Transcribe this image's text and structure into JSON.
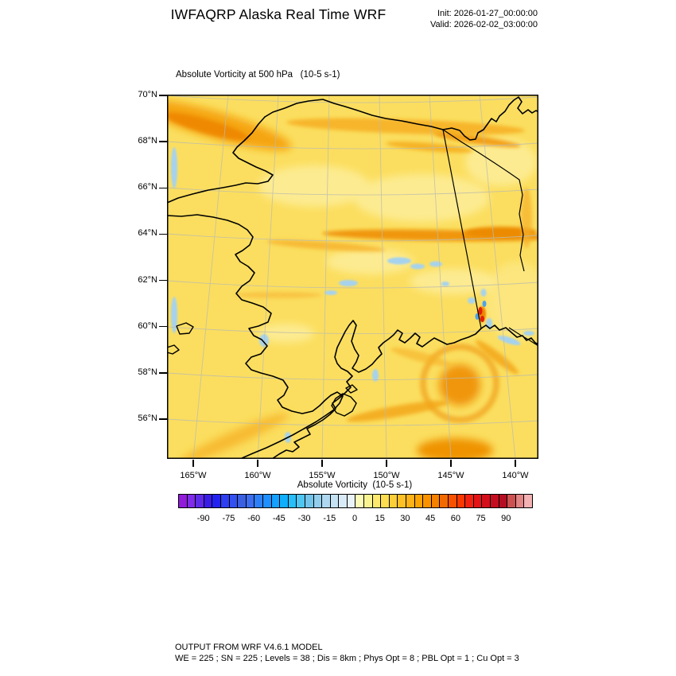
{
  "header": {
    "title": "IWFAQRP Alaska Real Time WRF",
    "init": "Init: 2026-01-27_00:00:00",
    "valid": "Valid: 2026-02-02_03:00:00"
  },
  "map": {
    "subtitle": "Absolute Vorticity at 500 hPa   (10-5 s-1)",
    "lat_labels": [
      "70°N",
      "68°N",
      "66°N",
      "64°N",
      "62°N",
      "60°N",
      "58°N",
      "56°N"
    ],
    "lon_labels": [
      "165°W",
      "160°W",
      "155°W",
      "150°W",
      "145°W",
      "140°W"
    ]
  },
  "colorbar": {
    "label": "Absolute Vorticity  (10-5 s-1)",
    "min": -105,
    "max": 105,
    "step": 5,
    "tick_values": [
      -90,
      -75,
      -60,
      -45,
      -30,
      -15,
      0,
      15,
      30,
      45,
      60,
      75,
      90
    ],
    "colors": [
      "#911cd9",
      "#7f2be8",
      "#5e2be8",
      "#3a1ee8",
      "#2323f0",
      "#2e3ef0",
      "#3350f0",
      "#3a5fe0",
      "#3e6ef0",
      "#2e80f8",
      "#1e90ff",
      "#14a0ff",
      "#0fafff",
      "#28befa",
      "#4fc6f2",
      "#74c4ea",
      "#93cdec",
      "#afd8f0",
      "#c5e2f4",
      "#d9ebf7",
      "#eaf3fa",
      "#fbfbb8",
      "#faf392",
      "#fce96e",
      "#fcdc50",
      "#fcce38",
      "#fdc125",
      "#fdb215",
      "#fda405",
      "#fa9200",
      "#f68000",
      "#f26a00",
      "#f85200",
      "#fa3800",
      "#f22110",
      "#e41316",
      "#d40f1b",
      "#c40d20",
      "#b50e24",
      "#cc5252",
      "#e28585",
      "#f3b1b4"
    ]
  },
  "footer": {
    "line1": "OUTPUT FROM WRF V4.6.1 MODEL",
    "line2": "WE = 225 ; SN = 225 ; Levels = 38 ; Dis = 8km ; Phys Opt = 8 ; PBL Opt = 1 ; Cu Opt = 3"
  },
  "chart_data": {
    "type": "heatmap",
    "title": "IWFAQRP Alaska Real Time WRF",
    "subtitle": "Absolute Vorticity at 500 hPa (10-5 s-1)",
    "field": "Absolute Vorticity at 500 hPa",
    "units": "10-5 s-1",
    "init_time_shown": "2026-01-27_00:00:00",
    "valid_time_shown": "2026-02-02_03:00:00",
    "x_axis": {
      "ticks": [
        "165°W",
        "160°W",
        "155°W",
        "150°W",
        "145°W",
        "140°W"
      ]
    },
    "y_axis": {
      "ticks": [
        "70°N",
        "68°N",
        "66°N",
        "64°N",
        "62°N",
        "60°N",
        "58°N",
        "56°N"
      ]
    },
    "colorbar": {
      "label": "Absolute Vorticity  (10-5 s-1)",
      "tick_labels": [
        -90,
        -75,
        -60,
        -45,
        -30,
        -15,
        0,
        15,
        30,
        45,
        60,
        75,
        90
      ],
      "cell_value_range": [
        -105,
        105
      ],
      "cell_step": 5
    },
    "field_features": [
      {
        "region": "band along Arctic coast near 69-70N",
        "approx_value_range": [
          25,
          45
        ]
      },
      {
        "region": "zonal streak near 67.5N east of 150W",
        "approx_value_range": [
          20,
          35
        ]
      },
      {
        "region": "zonal shear band near 64N across interior",
        "approx_value_range": [
          25,
          40
        ]
      },
      {
        "region": "most of domain (background)",
        "approx_value_range": [
          5,
          20
        ]
      },
      {
        "region": "scattered patches south of the 64N band and along coasts",
        "approx_value_range": [
          -15,
          -5
        ]
      },
      {
        "region": "cyclonic swirl in Gulf of Alaska near 58N 147W",
        "approx_value_range": [
          25,
          40
        ]
      },
      {
        "region": "small intense dipole near 60.5N 141W",
        "approx_value_range": [
          -25,
          80
        ]
      }
    ],
    "legend_position": "bottom",
    "grid": true
  }
}
